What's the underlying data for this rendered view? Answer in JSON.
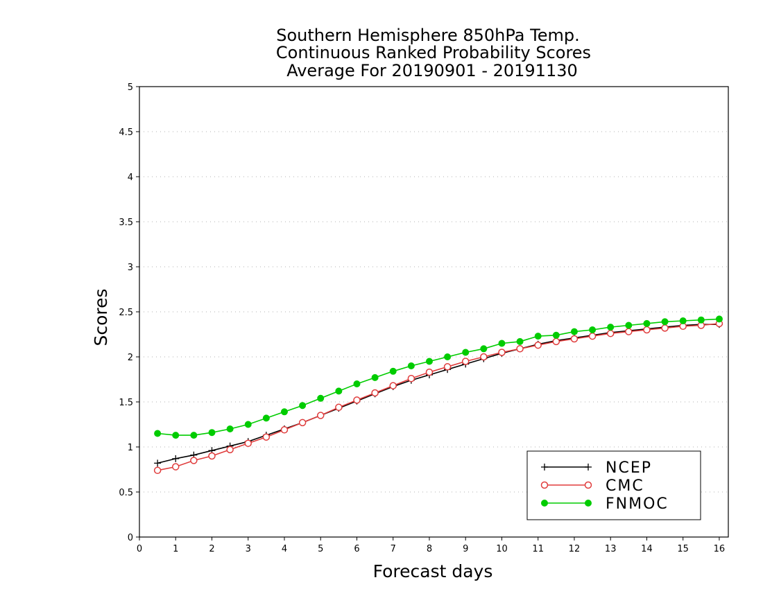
{
  "chart_data": {
    "type": "line",
    "title": [
      "Southern Hemisphere 850hPa Temp.",
      "Continuous Ranked Probability Scores",
      "Average For 20190901 - 20191130"
    ],
    "xlabel": "Forecast days",
    "ylabel": "Scores",
    "xlim": [
      0,
      16.25
    ],
    "ylim": [
      0,
      5
    ],
    "xticks": [
      "0",
      "1",
      "2",
      "3",
      "4",
      "5",
      "6",
      "7",
      "8",
      "9",
      "10",
      "11",
      "12",
      "13",
      "14",
      "15",
      "16"
    ],
    "yticks": [
      "0",
      "0.5",
      "1",
      "1.5",
      "2",
      "2.5",
      "3",
      "3.5",
      "4",
      "4.5",
      "5"
    ],
    "grid": true,
    "legend_position": "bottom-right",
    "x": [
      0.5,
      1,
      1.5,
      2,
      2.5,
      3,
      3.5,
      4,
      4.5,
      5,
      5.5,
      6,
      6.5,
      7,
      7.5,
      8,
      8.5,
      9,
      9.5,
      10,
      10.5,
      11,
      11.5,
      12,
      12.5,
      13,
      13.5,
      14,
      14.5,
      15,
      15.5,
      16
    ],
    "series": [
      {
        "name": "NCEP",
        "color": "#000000",
        "marker": "plus",
        "values": [
          0.82,
          0.87,
          0.91,
          0.96,
          1.01,
          1.06,
          1.13,
          1.2,
          1.27,
          1.35,
          1.43,
          1.51,
          1.59,
          1.67,
          1.74,
          1.8,
          1.86,
          1.92,
          1.98,
          2.04,
          2.09,
          2.14,
          2.18,
          2.21,
          2.24,
          2.27,
          2.29,
          2.31,
          2.33,
          2.35,
          2.36,
          2.36
        ]
      },
      {
        "name": "CMC",
        "color": "#e03c3c",
        "marker": "open-circle",
        "values": [
          0.74,
          0.78,
          0.85,
          0.9,
          0.97,
          1.04,
          1.11,
          1.19,
          1.27,
          1.35,
          1.44,
          1.52,
          1.6,
          1.68,
          1.76,
          1.83,
          1.89,
          1.95,
          2.0,
          2.05,
          2.09,
          2.13,
          2.17,
          2.2,
          2.23,
          2.26,
          2.28,
          2.3,
          2.32,
          2.34,
          2.35,
          2.37
        ]
      },
      {
        "name": "FNMOC",
        "color": "#00cc00",
        "marker": "filled-circle",
        "values": [
          1.15,
          1.13,
          1.13,
          1.16,
          1.2,
          1.25,
          1.32,
          1.39,
          1.46,
          1.54,
          1.62,
          1.7,
          1.77,
          1.84,
          1.9,
          1.95,
          2.0,
          2.05,
          2.09,
          2.15,
          2.17,
          2.23,
          2.24,
          2.28,
          2.3,
          2.33,
          2.35,
          2.37,
          2.39,
          2.4,
          2.41,
          2.42
        ]
      }
    ]
  }
}
